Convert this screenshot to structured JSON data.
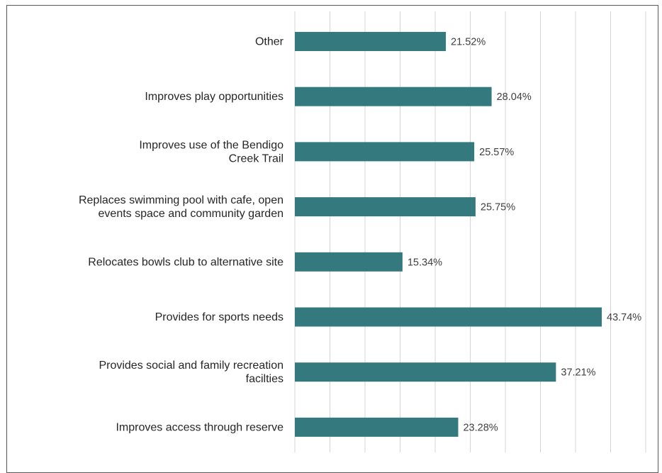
{
  "chart_data": {
    "type": "bar",
    "orientation": "horizontal",
    "categories": [
      [
        "Other"
      ],
      [
        "Improves play opportunities"
      ],
      [
        "Improves use of the Bendigo",
        "Creek Trail"
      ],
      [
        "Replaces swimming pool with cafe, open",
        "events space and community garden"
      ],
      [
        "Relocates bowls club to alternative site"
      ],
      [
        "Provides for sports needs"
      ],
      [
        "Provides social and family recreation",
        "facilties"
      ],
      [
        "Improves access through reserve"
      ]
    ],
    "values": [
      21.52,
      28.04,
      25.57,
      25.75,
      15.34,
      43.74,
      37.21,
      23.28
    ],
    "value_labels": [
      "21.52%",
      "28.04%",
      "25.57%",
      "25.75%",
      "15.34%",
      "43.74%",
      "37.21%",
      "23.28%"
    ],
    "xlim": [
      0,
      50
    ],
    "grid_step": 5,
    "grid": true,
    "bar_color": "#33797e",
    "title": "",
    "xlabel": "",
    "ylabel": ""
  }
}
